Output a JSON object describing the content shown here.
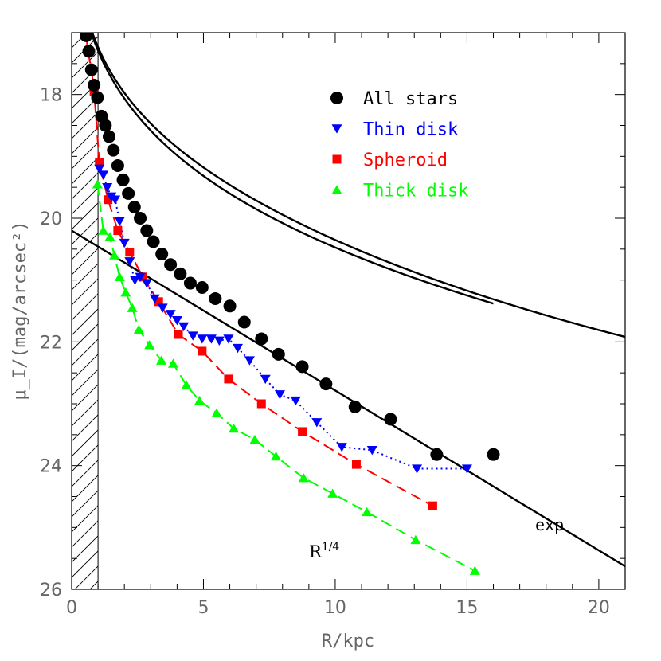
{
  "chart_data": {
    "type": "scatter",
    "xlabel": "R/kpc",
    "ylabel": "μ_I/(mag/arcsec²)",
    "xlim": [
      0,
      21
    ],
    "ylim": [
      26,
      17
    ],
    "y_inverted": true,
    "x_ticks": [
      "0",
      "5",
      "10",
      "15",
      "20"
    ],
    "y_ticks": [
      "18",
      "20",
      "22",
      "24",
      "26"
    ],
    "grid": false,
    "legend_placement": "top-center",
    "hatched_region": {
      "x_from": 0,
      "x_to": 1.0
    },
    "series": [
      {
        "name": "All stars",
        "marker": "circle",
        "color": "#000000",
        "line": "none",
        "x": [
          0.55,
          0.65,
          0.75,
          0.85,
          0.98,
          1.13,
          1.28,
          1.42,
          1.58,
          1.75,
          1.95,
          2.15,
          2.38,
          2.6,
          2.85,
          3.1,
          3.42,
          3.75,
          4.12,
          4.5,
          4.95,
          5.45,
          6.0,
          6.55,
          7.2,
          7.85,
          8.75,
          9.65,
          10.75,
          12.1,
          13.85,
          16.0
        ],
        "y": [
          17.05,
          17.3,
          17.6,
          17.85,
          18.05,
          18.35,
          18.5,
          18.68,
          18.9,
          19.15,
          19.38,
          19.6,
          19.82,
          20.0,
          20.2,
          20.38,
          20.58,
          20.75,
          20.9,
          21.05,
          21.12,
          21.3,
          21.42,
          21.68,
          21.95,
          22.2,
          22.4,
          22.68,
          23.05,
          23.25,
          23.82,
          23.82
        ]
      },
      {
        "name": "Thin disk",
        "marker": "triangle-down",
        "color": "#0000ff",
        "line": "dotted",
        "x": [
          1.05,
          1.2,
          1.35,
          1.5,
          1.65,
          1.82,
          2.0,
          2.2,
          2.4,
          2.6,
          2.85,
          3.15,
          3.45,
          3.75,
          4.0,
          4.25,
          4.6,
          4.95,
          5.3,
          5.6,
          5.95,
          6.3,
          6.75,
          7.35,
          7.9,
          8.5,
          9.3,
          10.25,
          11.4,
          13.1,
          15.0
        ],
        "y": [
          19.2,
          19.3,
          19.5,
          19.65,
          19.7,
          20.05,
          20.4,
          20.7,
          21.0,
          20.95,
          21.05,
          21.3,
          21.45,
          21.55,
          21.65,
          21.75,
          21.9,
          21.95,
          21.95,
          21.98,
          21.95,
          22.1,
          22.3,
          22.6,
          22.85,
          22.95,
          23.3,
          23.7,
          23.75,
          24.05,
          24.05
        ]
      },
      {
        "name": "Spheroid",
        "marker": "square",
        "color": "#ff0000",
        "line": "dashed",
        "x": [
          0.55,
          0.62,
          0.75,
          0.85,
          1.05,
          1.38,
          1.75,
          2.2,
          2.7,
          3.3,
          4.05,
          4.95,
          5.95,
          7.2,
          8.75,
          10.8,
          13.7
        ],
        "y": [
          17.05,
          17.3,
          17.6,
          17.95,
          19.1,
          19.7,
          20.2,
          20.55,
          20.95,
          21.35,
          21.88,
          22.15,
          22.6,
          23.0,
          23.45,
          23.98,
          24.65
        ]
      },
      {
        "name": "Thick disk",
        "marker": "triangle-up",
        "color": "#00ff00",
        "line": "dashed",
        "x": [
          0.98,
          1.2,
          1.45,
          1.62,
          1.82,
          2.05,
          2.3,
          2.55,
          2.95,
          3.4,
          3.85,
          4.35,
          4.85,
          5.5,
          6.15,
          6.95,
          7.75,
          8.8,
          9.9,
          11.2,
          13.05,
          15.3
        ],
        "y": [
          19.45,
          20.2,
          20.3,
          20.6,
          20.95,
          21.2,
          21.45,
          21.8,
          22.05,
          22.3,
          22.35,
          22.7,
          22.95,
          23.15,
          23.4,
          23.58,
          23.85,
          24.2,
          24.45,
          24.75,
          25.2,
          25.7
        ]
      }
    ],
    "model_curves": [
      {
        "label": "exp",
        "kind": "exponential",
        "a": 20.2,
        "b": 0.2381
      },
      {
        "label": "R1/4",
        "kind": "de-vaucouleurs",
        "a": 13.2,
        "b": 4.09
      },
      {
        "label": "",
        "kind": "sum"
      }
    ],
    "annotations": [
      {
        "text": "exp"
      },
      {
        "text": "R",
        "superscript": "1/4"
      }
    ]
  }
}
